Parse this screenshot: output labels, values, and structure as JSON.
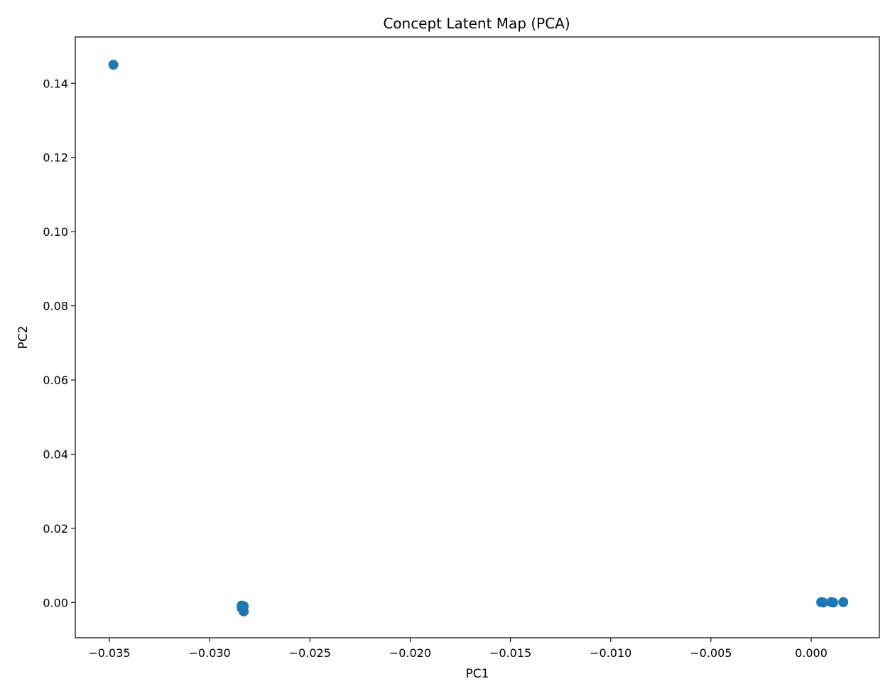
{
  "chart_data": {
    "type": "scatter",
    "title": "Concept Latent Map (PCA)",
    "xlabel": "PC1",
    "ylabel": "PC2",
    "xlim": [
      -0.0367,
      0.0034
    ],
    "ylim": [
      -0.0095,
      0.1525
    ],
    "xticks": [
      -0.035,
      -0.03,
      -0.025,
      -0.02,
      -0.015,
      -0.01,
      -0.005,
      0.0
    ],
    "xtick_labels": [
      "−0.035",
      "−0.030",
      "−0.025",
      "−0.020",
      "−0.015",
      "−0.010",
      "−0.005",
      "0.000"
    ],
    "yticks": [
      0.0,
      0.02,
      0.04,
      0.06,
      0.08,
      0.1,
      0.12,
      0.14
    ],
    "ytick_labels": [
      "0.00",
      "0.02",
      "0.04",
      "0.06",
      "0.08",
      "0.10",
      "0.12",
      "0.14"
    ],
    "grid": false,
    "point_color": "#1f77b4",
    "points": [
      {
        "x": -0.0348,
        "y": 0.145
      },
      {
        "x": -0.0284,
        "y": -0.0008
      },
      {
        "x": -0.0284,
        "y": -0.0012
      },
      {
        "x": -0.0283,
        "y": -0.001
      },
      {
        "x": -0.0284,
        "y": -0.0015
      },
      {
        "x": -0.0283,
        "y": -0.0024
      },
      {
        "x": 0.0005,
        "y": 0.0001
      },
      {
        "x": 0.0006,
        "y": 0.0
      },
      {
        "x": 0.001,
        "y": 0.0001
      },
      {
        "x": 0.0011,
        "y": 0.0
      },
      {
        "x": 0.0016,
        "y": 0.0001
      }
    ]
  }
}
